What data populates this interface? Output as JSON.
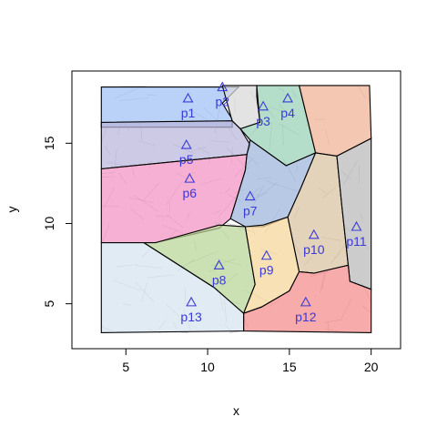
{
  "chart_data": {
    "type": "scatter",
    "title": "",
    "xlabel": "x",
    "ylabel": "y",
    "xlim": [
      1.7,
      21.8
    ],
    "ylim": [
      2.2,
      19.5
    ],
    "xticks": [
      5,
      10,
      15,
      20
    ],
    "yticks": [
      5,
      10,
      15
    ],
    "points": [
      {
        "name": "p1",
        "x": 8.8,
        "y": 17.8
      },
      {
        "name": "p2",
        "x": 10.9,
        "y": 18.5
      },
      {
        "name": "p3",
        "x": 13.4,
        "y": 17.3
      },
      {
        "name": "p4",
        "x": 14.9,
        "y": 17.8
      },
      {
        "name": "p5",
        "x": 8.7,
        "y": 14.9
      },
      {
        "name": "p6",
        "x": 8.9,
        "y": 12.8
      },
      {
        "name": "p7",
        "x": 12.6,
        "y": 11.7
      },
      {
        "name": "p8",
        "x": 10.7,
        "y": 7.4
      },
      {
        "name": "p9",
        "x": 13.6,
        "y": 8.0
      },
      {
        "name": "p10",
        "x": 16.5,
        "y": 9.3
      },
      {
        "name": "p11",
        "x": 19.1,
        "y": 9.8
      },
      {
        "name": "p12",
        "x": 16.0,
        "y": 5.1
      },
      {
        "name": "p13",
        "x": 9.0,
        "y": 5.1
      }
    ],
    "regions": [
      {
        "name": "p1",
        "color": "#9fbff5",
        "poly": [
          [
            3.5,
            18.5
          ],
          [
            11.9,
            18.5
          ],
          [
            10.9,
            17.5
          ],
          [
            11.5,
            16.5
          ],
          [
            11.5,
            16.0
          ],
          [
            3.5,
            16.0
          ]
        ]
      },
      {
        "name": "p2",
        "color": "#d8d8d8",
        "poly": [
          [
            10.9,
            18.6
          ],
          [
            13.0,
            18.6
          ],
          [
            13.0,
            17.9
          ],
          [
            13.2,
            16.3
          ],
          [
            12.0,
            15.9
          ],
          [
            11.5,
            16.4
          ]
        ]
      },
      {
        "name": "p3",
        "color": "#97d1b4",
        "poly": [
          [
            13.0,
            18.6
          ],
          [
            15.6,
            18.6
          ],
          [
            16.6,
            14.4
          ],
          [
            14.8,
            13.6
          ],
          [
            12.6,
            15.2
          ],
          [
            12.0,
            15.9
          ],
          [
            13.2,
            16.3
          ]
        ]
      },
      {
        "name": "p4",
        "color": "#f0b294",
        "poly": [
          [
            15.6,
            18.6
          ],
          [
            19.9,
            18.6
          ],
          [
            20.0,
            15.3
          ],
          [
            17.9,
            14.2
          ],
          [
            16.6,
            14.4
          ]
        ]
      },
      {
        "name": "p5",
        "color": "#b9b5d9",
        "poly": [
          [
            3.5,
            16.3
          ],
          [
            11.5,
            16.4
          ],
          [
            12.0,
            15.9
          ],
          [
            12.6,
            14.9
          ],
          [
            12.4,
            14.3
          ],
          [
            3.5,
            13.4
          ]
        ]
      },
      {
        "name": "p6",
        "color": "#f291c3",
        "poly": [
          [
            3.5,
            13.4
          ],
          [
            12.4,
            14.3
          ],
          [
            12.3,
            13.3
          ],
          [
            11.4,
            10.3
          ],
          [
            10.7,
            9.7
          ],
          [
            6.8,
            8.8
          ],
          [
            3.5,
            8.8
          ]
        ]
      },
      {
        "name": "p7",
        "color": "#9cb4dc",
        "poly": [
          [
            12.6,
            15.2
          ],
          [
            14.8,
            13.6
          ],
          [
            16.6,
            14.4
          ],
          [
            15.7,
            12.2
          ],
          [
            14.9,
            10.4
          ],
          [
            13.4,
            9.8
          ],
          [
            12.3,
            9.8
          ],
          [
            11.4,
            10.3
          ],
          [
            12.3,
            13.3
          ],
          [
            12.4,
            14.3
          ]
        ]
      },
      {
        "name": "p8",
        "color": "#b9d595",
        "poly": [
          [
            6.8,
            8.8
          ],
          [
            10.7,
            9.9
          ],
          [
            12.3,
            9.8
          ],
          [
            12.9,
            6.2
          ],
          [
            12.2,
            4.4
          ],
          [
            10.4,
            6.0
          ],
          [
            6.1,
            8.8
          ]
        ]
      },
      {
        "name": "p9",
        "color": "#f4d698",
        "poly": [
          [
            12.3,
            9.8
          ],
          [
            13.4,
            9.9
          ],
          [
            14.9,
            10.4
          ],
          [
            15.6,
            7.0
          ],
          [
            15.0,
            5.8
          ],
          [
            13.3,
            4.8
          ],
          [
            12.2,
            4.4
          ],
          [
            12.9,
            6.2
          ]
        ]
      },
      {
        "name": "p10",
        "color": "#d8c2a0",
        "poly": [
          [
            16.6,
            14.4
          ],
          [
            17.9,
            14.2
          ],
          [
            18.2,
            11.2
          ],
          [
            18.6,
            7.4
          ],
          [
            16.5,
            6.9
          ],
          [
            15.6,
            7.0
          ],
          [
            14.9,
            10.4
          ],
          [
            15.7,
            12.2
          ]
        ]
      },
      {
        "name": "p11",
        "color": "#b8b8b8",
        "poly": [
          [
            17.9,
            14.2
          ],
          [
            20.0,
            15.3
          ],
          [
            20.0,
            5.9
          ],
          [
            18.7,
            6.4
          ],
          [
            18.6,
            7.4
          ],
          [
            18.2,
            11.2
          ]
        ]
      },
      {
        "name": "p12",
        "color": "#f58a8a",
        "poly": [
          [
            12.2,
            4.4
          ],
          [
            13.3,
            4.8
          ],
          [
            15.0,
            5.8
          ],
          [
            15.6,
            7.0
          ],
          [
            16.5,
            6.9
          ],
          [
            18.6,
            7.4
          ],
          [
            18.7,
            6.4
          ],
          [
            20.0,
            5.9
          ],
          [
            20.0,
            3.2
          ],
          [
            12.2,
            3.3
          ]
        ]
      },
      {
        "name": "p13",
        "color": "#d6e3ef",
        "poly": [
          [
            3.5,
            8.8
          ],
          [
            6.1,
            8.8
          ],
          [
            10.4,
            6.0
          ],
          [
            12.2,
            4.4
          ],
          [
            12.2,
            3.3
          ],
          [
            3.5,
            3.2
          ]
        ]
      }
    ],
    "grid": false,
    "legend": "none"
  }
}
